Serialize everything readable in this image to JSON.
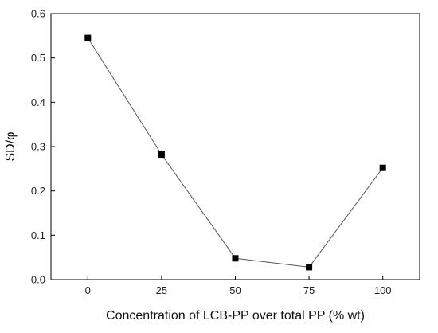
{
  "chart_data": {
    "type": "line",
    "title": "",
    "xlabel": "Concentration of LCB-PP over total PP (% wt)",
    "ylabel": "SD/φ",
    "x": [
      0,
      25,
      50,
      75,
      100
    ],
    "series": [
      {
        "values": [
          0.545,
          0.282,
          0.048,
          0.028,
          0.252
        ],
        "marker": "square",
        "color": "#000000",
        "line_color": "#555555"
      }
    ],
    "xlim": [
      -12.5,
      112.5
    ],
    "ylim": [
      0.0,
      0.6
    ],
    "x_ticks": [
      0,
      25,
      50,
      75,
      100
    ],
    "y_ticks": [
      0.0,
      0.1,
      0.2,
      0.3,
      0.4,
      0.5,
      0.6
    ],
    "x_tick_labels": [
      "0",
      "25",
      "50",
      "75",
      "100"
    ],
    "y_tick_labels": [
      "0.0",
      "0.1",
      "0.2",
      "0.3",
      "0.4",
      "0.5",
      "0.6"
    ],
    "grid": false,
    "legend": "none",
    "frame": "box"
  }
}
